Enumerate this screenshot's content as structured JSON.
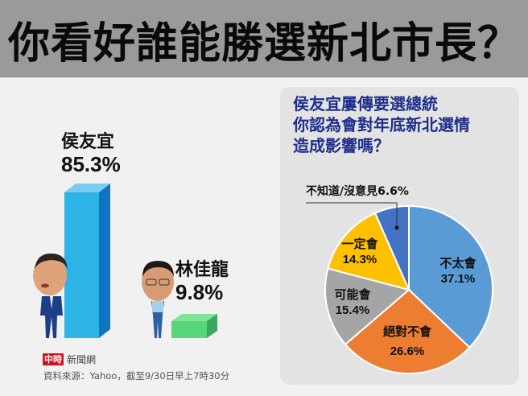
{
  "header": {
    "title": "你看好誰能勝選新北市長？"
  },
  "left_chart": {
    "candidates": [
      {
        "name": "侯友宜",
        "percent": "85.3%",
        "value": 85.3,
        "color_front": "#2db3e6",
        "color_top": "#79cdf0",
        "color_side": "#0d74c2"
      },
      {
        "name": "林佳龍",
        "percent": "9.8%",
        "value": 9.8,
        "color_front": "#58d67a",
        "color_top": "#7fe49a",
        "color_side": "#3ba65e"
      }
    ]
  },
  "footer": {
    "logo_mark": "中時",
    "logo_text": "新聞網",
    "source": "資料來源：Yahoo，截至9/30日早上7時30分"
  },
  "panel": {
    "title_lines": [
      "侯友宜屢傳要選總統",
      "你認為會對年底新北選情",
      "造成影響嗎？"
    ],
    "callout": "不知道/沒意見6.6%",
    "slices": [
      {
        "label": "不太會",
        "percent": "37.1%",
        "value": 37.1,
        "color": "#5b9bd5"
      },
      {
        "label": "絕對不會",
        "percent": "26.6%",
        "value": 26.6,
        "color": "#ed7d31"
      },
      {
        "label": "可能會",
        "percent": "15.4%",
        "value": 15.4,
        "color": "#a5a5a5"
      },
      {
        "label": "一定會",
        "percent": "14.3%",
        "value": 14.3,
        "color": "#ffc000"
      },
      {
        "label": "不知道/沒意見",
        "percent": "6.6%",
        "value": 6.6,
        "color": "#4472c4"
      }
    ]
  },
  "chart_data": [
    {
      "type": "bar",
      "title": "你看好誰能勝選新北市長？",
      "categories": [
        "侯友宜",
        "林佳龍"
      ],
      "values": [
        85.3,
        9.8
      ],
      "unit": "%",
      "xlabel": "",
      "ylabel": "",
      "colors": [
        "#2db3e6",
        "#58d67a"
      ],
      "source": "資料來源：Yahoo，截至9/30日早上7時30分"
    },
    {
      "type": "pie",
      "title": "侯友宜屢傳要選總統 你認為會對年底新北選情造成影響嗎？",
      "categories": [
        "不太會",
        "絕對不會",
        "可能會",
        "一定會",
        "不知道/沒意見"
      ],
      "values": [
        37.1,
        26.6,
        15.4,
        14.3,
        6.6
      ],
      "unit": "%",
      "colors": [
        "#5b9bd5",
        "#ed7d31",
        "#a5a5a5",
        "#ffc000",
        "#4472c4"
      ],
      "start_angle": "12 o'clock, clockwise"
    }
  ]
}
